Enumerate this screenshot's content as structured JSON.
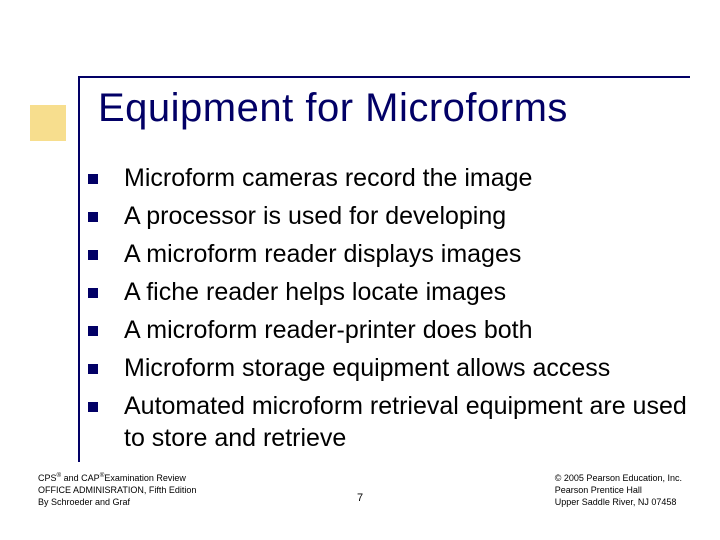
{
  "colors": {
    "accent_block": "#f1c232",
    "line": "#020066",
    "title": "#020066",
    "bullet": "#020066",
    "body_text": "#000000",
    "background": "#ffffff"
  },
  "typography": {
    "title_fontsize": 40,
    "body_fontsize": 25,
    "footer_fontsize": 9,
    "pagenum_fontsize": 11,
    "font_family": "Verdana"
  },
  "title": "Equipment for Microforms",
  "bullets": [
    "Microform cameras record the image",
    "A processor is used for developing",
    "A microform reader displays images",
    "A fiche reader helps locate images",
    "A microform reader-printer does both",
    "Microform storage equipment allows access",
    "Automated microform retrieval equipment are used to store and retrieve"
  ],
  "footer": {
    "left_line1_a": "CPS",
    "left_line1_b": " and CAP",
    "left_line1_c": "Examination Review",
    "left_line2": "OFFICE ADMINISRATION, Fifth Edition",
    "left_line3": "By Schroeder and Graf",
    "right_line1": "© 2005 Pearson Education, Inc.",
    "right_line2": "Pearson Prentice Hall",
    "right_line3": "Upper Saddle River, NJ 07458",
    "page_number": "7"
  }
}
